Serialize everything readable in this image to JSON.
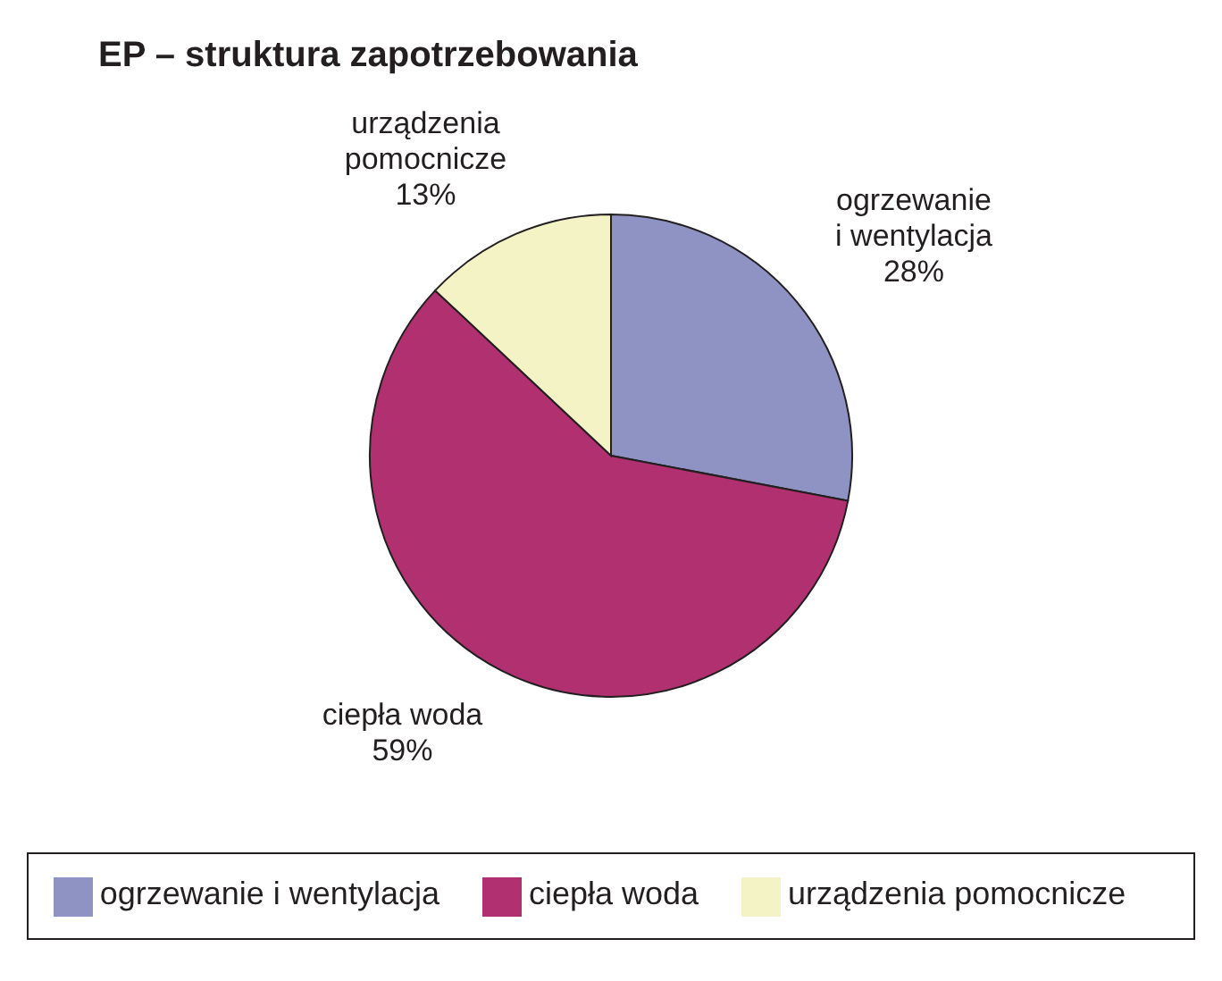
{
  "chart_data": {
    "type": "pie",
    "title": "EP – struktura zapotrzebowania",
    "categories": [
      "ogrzewanie i wentylacja",
      "ciepła woda",
      "urządzenia pomocnicze"
    ],
    "values": [
      28,
      59,
      13
    ],
    "value_labels": [
      "28%",
      "59%",
      "13%"
    ],
    "colors": [
      "#8f93c4",
      "#b03070",
      "#f3f3c6"
    ],
    "legend": "bottom"
  }
}
